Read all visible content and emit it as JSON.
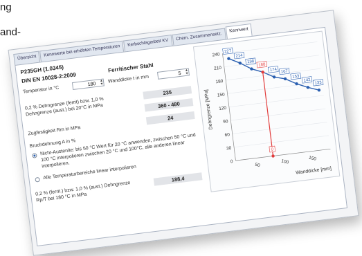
{
  "partial_text": {
    "line1": "ng",
    "line2": "and-"
  },
  "tabs": [
    {
      "label": "Übersicht"
    },
    {
      "label": "Kennwerte bei erhöhten Temperaturen"
    },
    {
      "label": "Kerbschlagarbeit KV"
    },
    {
      "label": "Chem. Zusammensetz."
    },
    {
      "label": "Kennwert"
    }
  ],
  "material": {
    "name": "P235GH (1.0345)",
    "standard": "DIN EN 10028-2:2009",
    "type": "Ferritischer Stahl"
  },
  "inputs": {
    "temperature_label": "Temperatur in °C",
    "temperature_value": "180",
    "thickness_label": "Wanddicke t in mm",
    "thickness_value": "5"
  },
  "values": {
    "proof_label_1": "0,2 % Dehngrenze (ferrit) bzw. 1,0 %",
    "proof_label_2": "Dehngrenze (aust.) bei 20°C in MPa",
    "proof_value": "235",
    "tensile_label": "Zugfestigkeit Rm in MPa",
    "tensile_value": "360 - 480",
    "elong_label": "Bruchdehnung A in %",
    "elong_value": "24"
  },
  "options": {
    "opt1_line1": "Nicht-Austenite: bis 50 °C Wert für 20 °C anwenden, zwischen 50 °C und",
    "opt1_line2": "100 °C interpolieren zwischen 20 °C und 100°C, alle anderen linear",
    "opt1_line3": "interpolieren.",
    "opt2": "Alle Temperaturbereiche linear interpolieren"
  },
  "result": {
    "label_1": "0,2 % (ferrit.) bzw. 1,0 % (aust.) Dehngrenze",
    "label_2": "Rp/T bei 180 °C in MPa",
    "value": "188,4"
  },
  "chart_data": {
    "type": "line",
    "ylabel": "Dehngrenze [MPa]",
    "xlabel": "Wanddicke [mm]",
    "y_ticks": [
      "0",
      "30",
      "60",
      "90",
      "120",
      "150",
      "180",
      "210",
      "240"
    ],
    "x_ticks": [
      "50",
      "100",
      "150"
    ],
    "ylim": [
      0,
      240
    ],
    "series": [
      {
        "values": [
          227,
          214,
          198,
          188,
          174,
          167,
          153,
          142,
          133
        ],
        "color": "#2a5fb0"
      }
    ],
    "highlight": {
      "point_label": "188",
      "zero_label": "0",
      "color": "#e23c3c"
    }
  }
}
